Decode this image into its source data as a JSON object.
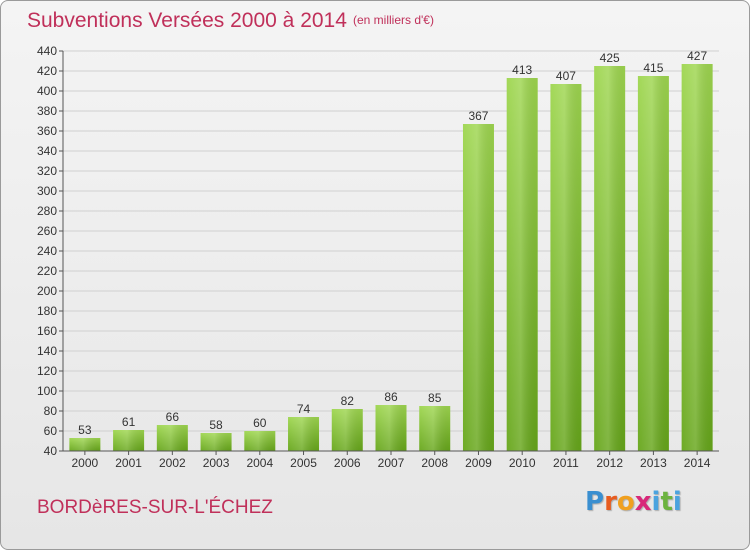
{
  "header": {
    "title": "Subventions Versées 2000 à 2014",
    "unit_note": "(en milliers d'€)"
  },
  "footer": {
    "commune": "BORDèRES-SUR-L'ÉCHEZ",
    "logo": {
      "letters": [
        "P",
        "r",
        "o",
        "x",
        "i",
        "t",
        "i"
      ],
      "colors": [
        "#3a8fd0",
        "#e85c1f",
        "#f0a020",
        "#d8287a",
        "#4aa3df",
        "#6cb33f",
        "#4aa3df"
      ]
    }
  },
  "colors": {
    "title": "#c0305a",
    "bar_light": "#9ed64f",
    "bar_dark": "#66a61a",
    "grid": "#d0d0d0",
    "axis": "#555555"
  },
  "chart_data": {
    "type": "bar",
    "categories": [
      "2000",
      "2001",
      "2002",
      "2003",
      "2004",
      "2005",
      "2006",
      "2007",
      "2008",
      "2009",
      "2010",
      "2011",
      "2012",
      "2013",
      "2014"
    ],
    "values": [
      53,
      61,
      66,
      58,
      60,
      74,
      82,
      86,
      85,
      367,
      413,
      407,
      425,
      415,
      427
    ],
    "ylim": [
      40,
      440
    ],
    "yticks": [
      40,
      60,
      80,
      100,
      120,
      140,
      160,
      180,
      200,
      220,
      240,
      260,
      280,
      300,
      320,
      340,
      360,
      380,
      400,
      420,
      440
    ],
    "grid": true,
    "data_labels": true,
    "xlabel": "",
    "ylabel": ""
  }
}
